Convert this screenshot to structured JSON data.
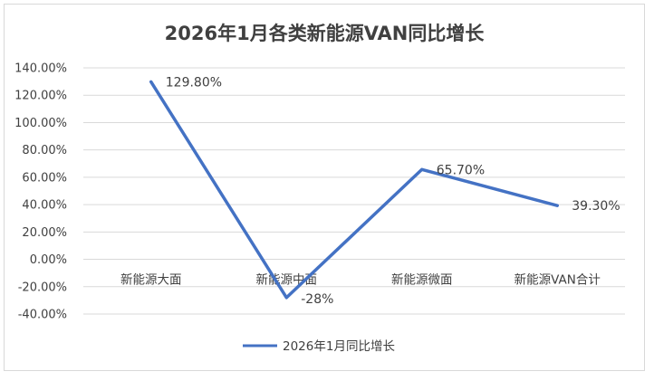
{
  "chart_data": {
    "type": "line",
    "title": "2026年1月各类新能源VAN同比增长",
    "categories": [
      "新能源大面",
      "新能源中面",
      "新能源微面",
      "新能源VAN合计"
    ],
    "series": [
      {
        "name": "2026年1月同比增长",
        "values": [
          129.8,
          -28,
          65.7,
          39.3
        ],
        "data_labels": [
          "129.80%",
          "-28%",
          "65.70%",
          "39.30%"
        ],
        "color": "#4472c4"
      }
    ],
    "ylim": [
      -40,
      140
    ],
    "y_ticks": [
      140,
      120,
      100,
      80,
      60,
      40,
      20,
      0,
      -20,
      -40
    ],
    "y_tick_labels": [
      "140.00%",
      "120.00%",
      "100.00%",
      "80.00%",
      "60.00%",
      "40.00%",
      "20.00%",
      "0.00%",
      "-20.00%",
      "-40.00%"
    ],
    "grid": true,
    "legend_position": "bottom",
    "grid_color": "#d9d9d9"
  }
}
